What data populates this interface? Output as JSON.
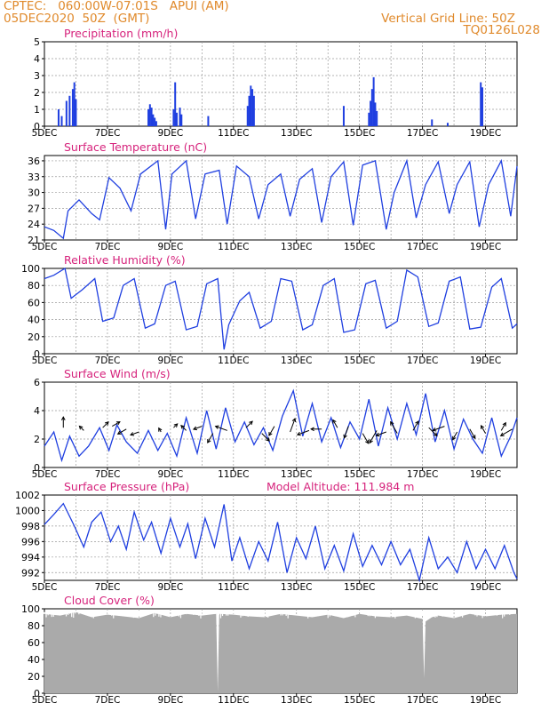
{
  "header": {
    "line1": "CPTEC:   060:00W-07:01S   APUI (AM)",
    "line2": "05DEC2020  50Z  (GMT)",
    "grid_note": "Vertical Grid Line: 50Z",
    "code": "TQ0126L028"
  },
  "colors": {
    "header": "#e08a2c",
    "title": "#d6237c",
    "series": "#1f3fe0",
    "arrows": "#000000",
    "cloud": "#aaaaaa",
    "grid": "#9a9a9a"
  },
  "x_axis": {
    "tick_labels": [
      "5DEC",
      "7DEC",
      "9DEC",
      "11DEC",
      "13DEC",
      "15DEC",
      "17DEC",
      "19DEC"
    ],
    "first_day": 5,
    "last_day": 20
  },
  "chart_data": [
    {
      "id": "precip",
      "type": "bar",
      "title": "Precipitation (mm/h)",
      "ylim": [
        0,
        5
      ],
      "y_ticks": [
        0,
        1,
        2,
        3,
        4,
        5
      ],
      "color": "#1f3fe0",
      "x": [
        5.45,
        5.55,
        5.7,
        5.8,
        5.9,
        5.95,
        6.0,
        8.3,
        8.35,
        8.4,
        8.45,
        8.5,
        8.55,
        9.1,
        9.15,
        9.2,
        9.3,
        9.35,
        10.2,
        11.45,
        11.5,
        11.55,
        11.6,
        11.65,
        14.5,
        15.3,
        15.35,
        15.4,
        15.45,
        15.5,
        15.55,
        17.3,
        17.8,
        18.85,
        18.9
      ],
      "values": [
        1.0,
        0.6,
        1.5,
        1.8,
        2.2,
        2.6,
        1.6,
        1.0,
        1.3,
        1.1,
        0.7,
        0.5,
        0.3,
        1.0,
        2.6,
        0.8,
        1.1,
        0.7,
        0.6,
        1.2,
        1.8,
        2.4,
        2.2,
        1.8,
        1.2,
        0.8,
        1.5,
        2.2,
        2.9,
        1.4,
        0.9,
        0.4,
        0.2,
        2.6,
        2.3
      ]
    },
    {
      "id": "temp",
      "type": "line",
      "title": "Surface Temperature (nC)",
      "ylim": [
        21,
        37
      ],
      "y_ticks": [
        21,
        24,
        27,
        30,
        33,
        36
      ],
      "color": "#1f3fe0",
      "x": [
        5.0,
        5.3,
        5.6,
        5.75,
        6.1,
        6.5,
        6.75,
        7.05,
        7.4,
        7.75,
        8.05,
        8.6,
        8.85,
        9.05,
        9.5,
        9.8,
        10.1,
        10.55,
        10.8,
        11.1,
        11.5,
        11.8,
        12.1,
        12.5,
        12.8,
        13.1,
        13.5,
        13.8,
        14.1,
        14.5,
        14.8,
        15.1,
        15.5,
        15.85,
        16.1,
        16.5,
        16.8,
        17.1,
        17.5,
        17.85,
        18.1,
        18.5,
        18.8,
        19.1,
        19.5,
        19.8,
        20.0
      ],
      "values": [
        23.5,
        22.8,
        21.3,
        26.5,
        28.6,
        26.0,
        24.8,
        32.8,
        30.8,
        26.5,
        33.5,
        36.0,
        23.0,
        33.5,
        36.0,
        25.0,
        33.5,
        34.2,
        24.0,
        35.0,
        33.0,
        25.0,
        31.5,
        33.5,
        25.5,
        32.5,
        34.5,
        24.3,
        33.0,
        35.8,
        23.8,
        35.2,
        36.0,
        23.0,
        30.0,
        36.0,
        25.2,
        31.5,
        35.8,
        26.0,
        31.5,
        35.8,
        23.5,
        31.5,
        36.0,
        25.5,
        35.0
      ]
    },
    {
      "id": "rh",
      "type": "line",
      "title": "Relative Humidity (%)",
      "ylim": [
        0,
        100
      ],
      "y_ticks": [
        0,
        20,
        40,
        60,
        80,
        100
      ],
      "color": "#1f3fe0",
      "x": [
        5.0,
        5.3,
        5.65,
        5.85,
        6.2,
        6.6,
        6.85,
        7.2,
        7.5,
        7.85,
        8.2,
        8.5,
        8.85,
        9.15,
        9.5,
        9.85,
        10.15,
        10.5,
        10.7,
        10.85,
        11.2,
        11.5,
        11.85,
        12.2,
        12.5,
        12.85,
        13.2,
        13.5,
        13.85,
        14.2,
        14.5,
        14.85,
        15.2,
        15.5,
        15.85,
        16.2,
        16.5,
        16.85,
        17.2,
        17.5,
        17.85,
        18.2,
        18.5,
        18.85,
        19.2,
        19.5,
        19.85,
        20.0
      ],
      "values": [
        88,
        92,
        100,
        65,
        75,
        88,
        38,
        42,
        80,
        88,
        30,
        35,
        80,
        85,
        28,
        32,
        82,
        88,
        5,
        34,
        62,
        72,
        30,
        38,
        88,
        85,
        28,
        34,
        80,
        88,
        25,
        28,
        82,
        86,
        30,
        38,
        98,
        90,
        32,
        36,
        85,
        90,
        29,
        31,
        78,
        88,
        30,
        35
      ]
    },
    {
      "id": "wind",
      "type": "line",
      "title": "Surface Wind (m/s)",
      "ylim": [
        0,
        6
      ],
      "y_ticks": [
        0,
        2,
        4,
        6
      ],
      "color": "#1f3fe0",
      "x": [
        5.0,
        5.3,
        5.55,
        5.8,
        6.1,
        6.4,
        6.75,
        7.05,
        7.3,
        7.6,
        7.95,
        8.3,
        8.6,
        8.9,
        9.2,
        9.5,
        9.85,
        10.15,
        10.45,
        10.75,
        11.05,
        11.35,
        11.65,
        11.95,
        12.25,
        12.55,
        12.9,
        13.2,
        13.5,
        13.8,
        14.1,
        14.4,
        14.7,
        15.0,
        15.3,
        15.6,
        15.9,
        16.2,
        16.5,
        16.8,
        17.1,
        17.4,
        17.7,
        18.0,
        18.3,
        18.6,
        18.9,
        19.2,
        19.5,
        19.8,
        20.0
      ],
      "values": [
        1.5,
        2.5,
        0.5,
        2.2,
        0.8,
        1.5,
        2.8,
        1.2,
        3.0,
        1.8,
        1.0,
        2.6,
        1.2,
        2.4,
        0.8,
        3.5,
        1.0,
        4.0,
        1.3,
        4.2,
        1.8,
        3.2,
        1.6,
        2.8,
        1.2,
        3.6,
        5.4,
        2.2,
        4.5,
        1.8,
        3.5,
        1.4,
        3.2,
        2.0,
        4.8,
        1.5,
        4.2,
        2.0,
        4.5,
        2.3,
        5.2,
        1.8,
        4.0,
        1.3,
        3.4,
        2.0,
        1.0,
        3.5,
        0.8,
        2.2,
        3.5
      ],
      "arrows_x": [
        5.6,
        6.25,
        6.85,
        7.15,
        7.6,
        8.0,
        8.7,
        9.1,
        9.5,
        10.0,
        10.35,
        10.8,
        11.4,
        11.9,
        12.3,
        12.8,
        13.4,
        13.8,
        14.3,
        14.65,
        15.1,
        15.55,
        15.85,
        16.2,
        16.7,
        17.2,
        17.7,
        18.1,
        18.5,
        19.0,
        19.5,
        19.85
      ],
      "arrows_y": [
        2.8,
        2.6,
        2.8,
        2.9,
        2.7,
        2.5,
        2.5,
        2.8,
        2.6,
        2.9,
        2.4,
        2.6,
        2.8,
        2.4,
        2.9,
        2.5,
        2.6,
        2.7,
        2.8,
        2.9,
        2.4,
        2.6,
        2.5,
        2.4,
        2.6,
        2.8,
        2.9,
        2.5,
        2.7,
        2.4,
        2.6,
        2.7
      ],
      "arrows_dir_deg": [
        90,
        135,
        45,
        30,
        210,
        200,
        120,
        45,
        135,
        200,
        240,
        160,
        45,
        315,
        240,
        70,
        200,
        180,
        120,
        250,
        300,
        240,
        200,
        120,
        60,
        315,
        200,
        240,
        300,
        120,
        60,
        210
      ],
      "arrows_speed": [
        1.2,
        0.7,
        0.9,
        1.0,
        1.1,
        1.0,
        0.5,
        0.6,
        0.8,
        1.0,
        1.2,
        1.4,
        1.0,
        1.2,
        1.2,
        1.6,
        1.4,
        1.2,
        1.0,
        1.4,
        1.3,
        1.6,
        1.2,
        1.5,
        1.2,
        1.3,
        1.4,
        1.0,
        1.2,
        1.0,
        1.0,
        1.5
      ]
    },
    {
      "id": "pres",
      "type": "line",
      "title": "Surface Pressure (hPa)",
      "ylim": [
        991,
        1002
      ],
      "y_ticks": [
        992,
        994,
        996,
        998,
        1000,
        1002
      ],
      "color": "#1f3fe0",
      "x": [
        5.0,
        5.3,
        5.6,
        5.95,
        6.25,
        6.5,
        6.8,
        7.1,
        7.35,
        7.6,
        7.85,
        8.15,
        8.4,
        8.7,
        9.0,
        9.3,
        9.55,
        9.8,
        10.1,
        10.4,
        10.7,
        10.95,
        11.2,
        11.5,
        11.8,
        12.1,
        12.4,
        12.7,
        13.0,
        13.3,
        13.6,
        13.9,
        14.2,
        14.5,
        14.8,
        15.1,
        15.4,
        15.7,
        16.0,
        16.3,
        16.6,
        16.9,
        17.2,
        17.5,
        17.8,
        18.1,
        18.4,
        18.7,
        19.0,
        19.3,
        19.6,
        19.9,
        20.0
      ],
      "values": [
        998.2,
        999.5,
        1000.9,
        998.0,
        995.3,
        998.5,
        999.8,
        996.0,
        998.0,
        995.0,
        999.8,
        996.2,
        998.5,
        994.5,
        999.0,
        995.3,
        998.3,
        993.8,
        999.0,
        995.3,
        1000.8,
        993.5,
        996.5,
        992.5,
        996.0,
        993.5,
        998.5,
        992.0,
        996.5,
        993.8,
        998.0,
        992.5,
        995.5,
        992.2,
        997.0,
        992.8,
        995.5,
        993.0,
        996.0,
        993.0,
        995.0,
        991.0,
        996.5,
        992.5,
        994.0,
        992.0,
        996.0,
        992.5,
        995.0,
        992.5,
        995.5,
        992.0,
        991.2
      ],
      "extra_label": "Model Altitude: 111.984 m"
    },
    {
      "id": "cloud",
      "type": "area",
      "title": "Cloud Cover (%)",
      "ylim": [
        0,
        100
      ],
      "y_ticks": [
        0,
        20,
        40,
        60,
        80,
        100
      ],
      "color": "#aaaaaa",
      "x": [
        5.0,
        5.5,
        6.0,
        6.5,
        7.0,
        7.5,
        8.0,
        8.5,
        9.0,
        9.5,
        10.0,
        10.45,
        10.5,
        10.55,
        11.0,
        11.5,
        12.0,
        12.5,
        13.0,
        13.5,
        14.0,
        14.5,
        15.0,
        15.5,
        16.0,
        16.5,
        17.0,
        17.05,
        17.1,
        17.3,
        17.5,
        18.0,
        18.5,
        19.0,
        19.5,
        20.0
      ],
      "values": [
        94,
        92,
        96,
        90,
        93,
        91,
        89,
        95,
        90,
        94,
        92,
        94,
        2,
        94,
        93,
        91,
        90,
        94,
        92,
        90,
        93,
        89,
        94,
        91,
        90,
        92,
        88,
        18,
        85,
        90,
        92,
        89,
        94,
        91,
        93,
        94
      ]
    }
  ]
}
